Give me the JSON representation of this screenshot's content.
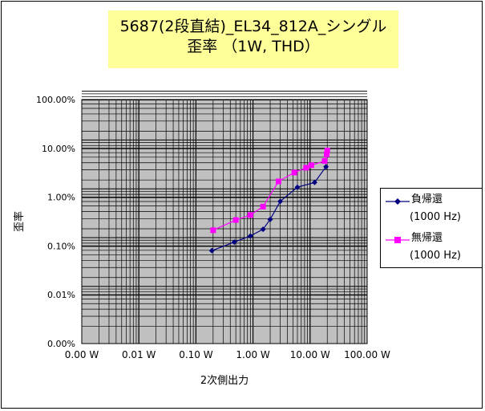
{
  "chart_data": {
    "type": "scatter",
    "title": "5687(2段直結)_EL34_812A_シングル",
    "subtitle": "歪率 （1W, THD）",
    "xlabel": "2次側出力",
    "ylabel": "歪率",
    "x_scale": "log",
    "y_scale": "log",
    "x_ticks": [
      "0.00 W",
      "0.01 W",
      "0.10 W",
      "1.00 W",
      "10.00 W",
      "100.00 W"
    ],
    "y_ticks": [
      "100.00%",
      "10.00%",
      "1.00%",
      "0.10%",
      "0.01%",
      "0.00%"
    ],
    "grid": true,
    "legend_position": "right",
    "series": [
      {
        "name": "負帰還",
        "name_sub": "(1000 Hz)",
        "color": "#000080",
        "marker": "diamond",
        "points": [
          {
            "x": 0.19,
            "y": 0.08
          },
          {
            "x": 0.47,
            "y": 0.12
          },
          {
            "x": 0.9,
            "y": 0.16
          },
          {
            "x": 1.5,
            "y": 0.22
          },
          {
            "x": 2.0,
            "y": 0.35
          },
          {
            "x": 3.0,
            "y": 0.82
          },
          {
            "x": 6.0,
            "y": 1.6
          },
          {
            "x": 12.0,
            "y": 2.0
          },
          {
            "x": 19.0,
            "y": 4.2
          }
        ]
      },
      {
        "name": "無帰還",
        "name_sub": "(1000 Hz)",
        "color": "#ff00ff",
        "marker": "square",
        "points": [
          {
            "x": 0.2,
            "y": 0.21
          },
          {
            "x": 0.5,
            "y": 0.34
          },
          {
            "x": 0.9,
            "y": 0.43
          },
          {
            "x": 1.5,
            "y": 0.64
          },
          {
            "x": 2.8,
            "y": 2.1
          },
          {
            "x": 5.3,
            "y": 3.2
          },
          {
            "x": 8.5,
            "y": 4.0
          },
          {
            "x": 10.5,
            "y": 4.5
          },
          {
            "x": 18.0,
            "y": 5.5
          },
          {
            "x": 19.5,
            "y": 7.5
          },
          {
            "x": 20.0,
            "y": 9.0
          }
        ]
      }
    ]
  }
}
